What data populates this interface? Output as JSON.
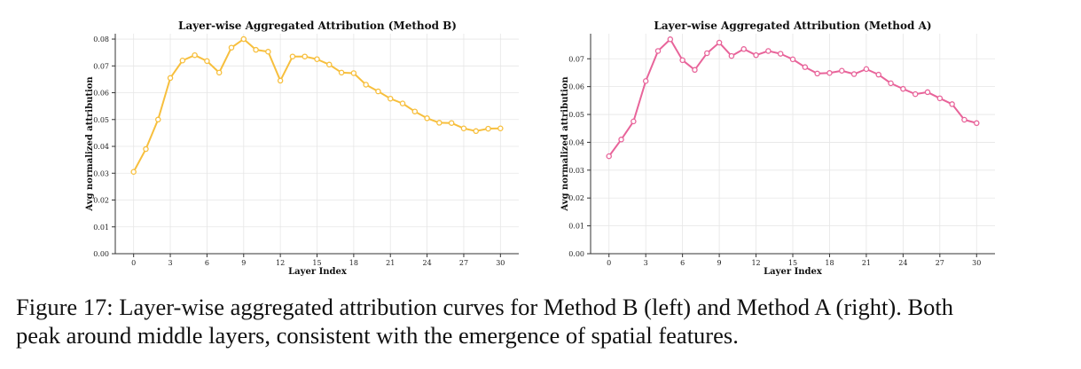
{
  "chart_data": [
    {
      "type": "line",
      "title": "Layer-wise Aggregated Attribution (Method B)",
      "xlabel": "Layer Index",
      "ylabel": "Avg normalized attribution",
      "xlim": [
        -1.5,
        31.5
      ],
      "ylim": [
        0,
        0.082
      ],
      "xticks": [
        0,
        3,
        6,
        9,
        12,
        15,
        18,
        21,
        24,
        27,
        30
      ],
      "yticks": [
        0.0,
        0.01,
        0.02,
        0.03,
        0.04,
        0.05,
        0.06,
        0.07,
        0.08
      ],
      "ytick_labels": [
        "0.00",
        "0.01",
        "0.02",
        "0.03",
        "0.04",
        "0.05",
        "0.06",
        "0.07",
        "0.08"
      ],
      "grid": true,
      "color": "#f7bf3d",
      "x": [
        0,
        1,
        2,
        3,
        4,
        5,
        6,
        7,
        8,
        9,
        10,
        11,
        12,
        13,
        14,
        15,
        16,
        17,
        18,
        19,
        20,
        21,
        22,
        23,
        24,
        25,
        26,
        27,
        28,
        29,
        30
      ],
      "values": [
        0.0305,
        0.039,
        0.05,
        0.0655,
        0.072,
        0.074,
        0.0718,
        0.0675,
        0.0768,
        0.08,
        0.076,
        0.0753,
        0.0645,
        0.0735,
        0.0735,
        0.0725,
        0.0705,
        0.0675,
        0.0673,
        0.063,
        0.0605,
        0.0578,
        0.056,
        0.053,
        0.0505,
        0.0488,
        0.0487,
        0.0467,
        0.0457,
        0.0466,
        0.0467
      ]
    },
    {
      "type": "line",
      "title": "Layer-wise Aggregated Attribution (Method A)",
      "xlabel": "Layer Index",
      "ylabel": "Avg normalized attribution",
      "xlim": [
        -1.5,
        31.5
      ],
      "ylim": [
        0,
        0.079
      ],
      "xticks": [
        0,
        3,
        6,
        9,
        12,
        15,
        18,
        21,
        24,
        27,
        30
      ],
      "yticks": [
        0.0,
        0.01,
        0.02,
        0.03,
        0.04,
        0.05,
        0.06,
        0.07
      ],
      "ytick_labels": [
        "0.00",
        "0.01",
        "0.02",
        "0.03",
        "0.04",
        "0.05",
        "0.06",
        "0.07"
      ],
      "grid": true,
      "color": "#e8649a",
      "x": [
        0,
        1,
        2,
        3,
        4,
        5,
        6,
        7,
        8,
        9,
        10,
        11,
        12,
        13,
        14,
        15,
        16,
        17,
        18,
        19,
        20,
        21,
        22,
        23,
        24,
        25,
        26,
        27,
        28,
        29,
        30
      ],
      "values": [
        0.035,
        0.041,
        0.0475,
        0.062,
        0.0728,
        0.077,
        0.0695,
        0.066,
        0.072,
        0.0758,
        0.071,
        0.0735,
        0.0713,
        0.0728,
        0.0718,
        0.0698,
        0.067,
        0.0647,
        0.0649,
        0.0657,
        0.0645,
        0.0663,
        0.0643,
        0.0612,
        0.0592,
        0.0573,
        0.058,
        0.0558,
        0.0537,
        0.0481,
        0.0469
      ]
    }
  ],
  "caption": {
    "line1": "Figure 17: Layer-wise aggregated attribution curves for Method B (left) and Method A (right). Both",
    "line2": "peak around middle layers, consistent with the emergence of spatial features."
  }
}
